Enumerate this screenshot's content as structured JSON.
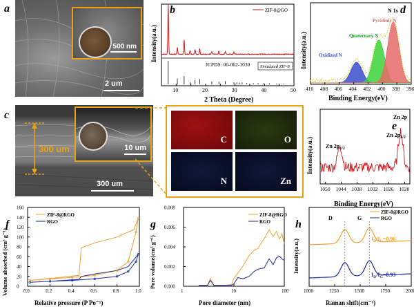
{
  "panels": {
    "a": {
      "label": "a",
      "scale_main": "2 um",
      "scale_inset": "500 nm"
    },
    "b": {
      "label": "b",
      "xlabel": "2 Theta (Degree)",
      "ylabel": "Intensity(a.u.)",
      "legend": "ZIF-8@GO",
      "ref_text": "JCPDS: 00-062-1030",
      "ref_box": "Simulated ZIF-8"
    },
    "c": {
      "label": "c",
      "thickness": "300 um",
      "scale_inset": "10 um",
      "scale_main": "300 um"
    },
    "d": {
      "label": "d",
      "xlabel": "Binding Energy(eV)",
      "ylabel": "Intensity(a.u.)",
      "title": "N 1s",
      "peaks": [
        "Pyridinic N",
        "Quaternary N",
        "Oxidized N"
      ]
    },
    "e": {
      "label": "e",
      "xlabel": "Binding Energy(eV)",
      "ylabel": "Intensity(a.u.)",
      "title": "Zn 2p",
      "peak1": "Zn 2p1/2",
      "peak2": "Zn 2p3/2"
    },
    "f": {
      "label": "f",
      "xlabel": "Relative pressure (P Po⁻¹)",
      "ylabel": "Volume absorbed (cm³ g⁻¹)",
      "legend": [
        "ZIF-8@RGO",
        "RGO"
      ]
    },
    "g": {
      "label": "g",
      "xlabel": "Pore diameter (nm)",
      "ylabel": "Pore volume(cm³ g⁻¹)",
      "legend": [
        "ZIF-8@RGO",
        "RGO"
      ]
    },
    "h": {
      "label": "h",
      "xlabel": "Raman shift(cm⁻¹)",
      "ylabel": "Intensity(a.u.)",
      "legend": [
        "ZIF-8@RGO",
        "RGO"
      ],
      "band_d": "D",
      "band_g": "G",
      "ratio_top": "ID/IG=0.96",
      "ratio_bottom": "ID/IG=0.93"
    }
  },
  "maps": [
    {
      "element": "C",
      "color": "#c01010"
    },
    {
      "element": "O",
      "color": "#2a4a10"
    },
    {
      "element": "N",
      "color": "#0a1030"
    },
    {
      "element": "Zn",
      "color": "#0a1030"
    }
  ],
  "chart_data": [
    {
      "type": "line",
      "panel": "b",
      "xlabel": "2 Theta (Degree)",
      "ylabel": "Intensity(a.u.)",
      "xlim": [
        5,
        50
      ],
      "x_ticks": [
        5,
        10,
        15,
        20,
        25,
        30,
        35,
        40,
        45,
        50
      ],
      "series": [
        {
          "name": "ZIF-8@GO",
          "peaks": [
            [
              7.3,
              100
            ],
            [
              10.4,
              14
            ],
            [
              12.7,
              28
            ],
            [
              14.7,
              7
            ],
            [
              16.4,
              10
            ],
            [
              18.0,
              12
            ],
            [
              22.1,
              5
            ],
            [
              24.5,
              6
            ],
            [
              26.7,
              6
            ],
            [
              29.6,
              5
            ]
          ]
        }
      ],
      "reference": {
        "name": "Simulated ZIF-8",
        "lines": [
          [
            7.3,
            100
          ],
          [
            10.4,
            25
          ],
          [
            12.7,
            35
          ],
          [
            14.7,
            10
          ],
          [
            16.4,
            18
          ],
          [
            18.0,
            22
          ],
          [
            22.1,
            12
          ],
          [
            24.5,
            12
          ],
          [
            26.7,
            14
          ],
          [
            29.6,
            9
          ],
          [
            30.6,
            8
          ],
          [
            31.5,
            7
          ],
          [
            32.4,
            8
          ],
          [
            34.0,
            6
          ],
          [
            36.2,
            5
          ],
          [
            37.8,
            5
          ],
          [
            39.5,
            4
          ],
          [
            41.7,
            4
          ],
          [
            44.0,
            3
          ],
          [
            46.5,
            3
          ]
        ]
      }
    },
    {
      "type": "line",
      "panel": "d",
      "xlabel": "Binding Energy(eV)",
      "ylabel": "Intensity(a.u.)",
      "xlim": [
        410,
        396
      ],
      "x_ticks": [
        410,
        408,
        406,
        404,
        402,
        400,
        398,
        396
      ],
      "series": [
        {
          "name": "Oxidized N",
          "center": 403.6,
          "height": 30,
          "color": "#3a4fd0"
        },
        {
          "name": "Quaternary N",
          "center": 400.5,
          "height": 62,
          "color": "#3bd43b"
        },
        {
          "name": "Pyridinic N",
          "center": 398.5,
          "height": 88,
          "color": "#e86a6a"
        }
      ]
    },
    {
      "type": "line",
      "panel": "e",
      "xlabel": "Binding Energy(eV)",
      "ylabel": "Intensity(a.u.)",
      "xlim": [
        1052,
        1018
      ],
      "x_ticks": [
        1050,
        1044,
        1038,
        1032,
        1026,
        1020
      ],
      "series": [
        {
          "name": "Zn 2p",
          "peaks": [
            [
              1044.5,
              45
            ],
            [
              1021.5,
              75
            ]
          ],
          "color": "#d01818"
        }
      ]
    },
    {
      "type": "line",
      "panel": "f",
      "xlabel": "Relative pressure (P Po⁻¹)",
      "ylabel": "Volume absorbed (cm³ g⁻¹)",
      "xlim": [
        0,
        1.0
      ],
      "ylim": [
        0,
        160
      ],
      "x_ticks": [
        0.0,
        0.2,
        0.4,
        0.6,
        0.8,
        1.0
      ],
      "y_ticks": [
        0,
        20,
        40,
        60,
        80,
        100,
        120,
        140,
        160
      ],
      "series": [
        {
          "name": "ZIF-8@RGO",
          "color": "#f0a030",
          "adsorption": [
            [
              0.02,
              12
            ],
            [
              0.2,
              15
            ],
            [
              0.4,
              18
            ],
            [
              0.6,
              22
            ],
            [
              0.8,
              32
            ],
            [
              0.9,
              50
            ],
            [
              0.97,
              110
            ],
            [
              0.99,
              138
            ]
          ],
          "desorption": [
            [
              0.99,
              138
            ],
            [
              0.95,
              115
            ],
            [
              0.8,
              100
            ],
            [
              0.6,
              88
            ],
            [
              0.48,
              78
            ],
            [
              0.46,
              22
            ],
            [
              0.2,
              16
            ],
            [
              0.02,
              12
            ]
          ]
        },
        {
          "name": "RGO",
          "color": "#1a2a9a",
          "adsorption": [
            [
              0.02,
              8
            ],
            [
              0.2,
              10
            ],
            [
              0.4,
              12
            ],
            [
              0.6,
              15
            ],
            [
              0.8,
              20
            ],
            [
              0.9,
              30
            ],
            [
              0.97,
              50
            ],
            [
              0.99,
              65
            ]
          ],
          "desorption": [
            [
              0.99,
              65
            ],
            [
              0.9,
              40
            ],
            [
              0.8,
              32
            ],
            [
              0.6,
              25
            ],
            [
              0.48,
              20
            ],
            [
              0.46,
              14
            ],
            [
              0.2,
              10
            ],
            [
              0.02,
              8
            ]
          ]
        }
      ]
    },
    {
      "type": "line",
      "panel": "g",
      "xlabel": "Pore diameter (nm)",
      "ylabel": "Pore volume(cm³ g⁻¹)",
      "xscale": "log",
      "xlim": [
        1,
        100
      ],
      "ylim": [
        0,
        0.008
      ],
      "y_ticks": [
        0.0,
        0.002,
        0.004,
        0.006,
        0.008
      ],
      "series": [
        {
          "name": "ZIF-8@RGO",
          "color": "#f0a030",
          "x": [
            2,
            3,
            3.4,
            4,
            5,
            7,
            9,
            10,
            12,
            15,
            20,
            25,
            30,
            40,
            50,
            60,
            70,
            80,
            90,
            100
          ],
          "values": [
            0.0001,
            0.0001,
            0.0008,
            0.0001,
            0.0001,
            0.0001,
            0.0002,
            0.0008,
            0.0015,
            0.002,
            0.003,
            0.0036,
            0.004,
            0.005,
            0.0058,
            0.0052,
            0.0055,
            0.005,
            0.0056,
            0.0045
          ]
        },
        {
          "name": "RGO",
          "color": "#1a2a9a",
          "x": [
            2,
            3,
            3.4,
            4,
            5,
            7,
            9,
            10,
            12,
            15,
            20,
            25,
            30,
            40,
            50,
            60,
            70,
            80,
            90,
            100
          ],
          "values": [
            0.0001,
            0.0001,
            0.0006,
            0.0001,
            0.0001,
            0.0001,
            0.0001,
            0.0004,
            0.0006,
            0.0008,
            0.0012,
            0.0015,
            0.0016,
            0.002,
            0.0025,
            0.0022,
            0.0026,
            0.0028,
            0.003,
            0.0025
          ]
        }
      ]
    },
    {
      "type": "line",
      "panel": "h",
      "xlabel": "Raman shift(cm⁻¹)",
      "ylabel": "Intensity(a.u.)",
      "xlim": [
        1000,
        2000
      ],
      "x_ticks": [
        1000,
        1250,
        1500,
        1750,
        2000
      ],
      "series": [
        {
          "name": "ZIF-8@RGO",
          "color": "#f0a030",
          "offset": 1,
          "peaks": [
            [
              1350,
              1.0
            ],
            [
              1590,
              1.04
            ]
          ]
        },
        {
          "name": "RGO",
          "color": "#1a2a9a",
          "offset": 0,
          "peaks": [
            [
              1350,
              1.0
            ],
            [
              1590,
              1.07
            ]
          ]
        }
      ]
    }
  ]
}
